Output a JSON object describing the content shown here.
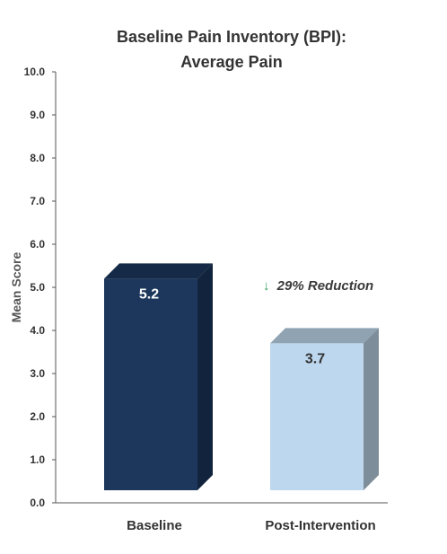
{
  "chart_data": {
    "type": "bar",
    "title_lines": [
      "Baseline Pain Inventory (BPI):",
      "Average Pain"
    ],
    "xlabel": "",
    "ylabel": "Mean Score",
    "ylim": [
      0,
      10
    ],
    "yticks": [
      "0.0",
      "1.0",
      "2.0",
      "3.0",
      "4.0",
      "5.0",
      "6.0",
      "7.0",
      "8.0",
      "9.0",
      "10.0"
    ],
    "categories": [
      "Baseline",
      "Post-Intervention"
    ],
    "values": [
      5.2,
      3.7
    ],
    "data_labels": [
      "5.2",
      "3.7"
    ],
    "bar_colors": [
      "#1c375b",
      "#bdd7ee"
    ],
    "bar_side_colors": [
      "#12243d",
      "#7d8d99"
    ],
    "bar_top_colors": [
      "#142a46",
      "#8fa3b3"
    ],
    "data_label_colors": [
      "#ffffff",
      "#333333"
    ],
    "annotation": {
      "arrow": "↓",
      "text": "29% Reduction",
      "arrow_color": "#2e9e5a"
    },
    "grid": false,
    "legend": "none"
  }
}
